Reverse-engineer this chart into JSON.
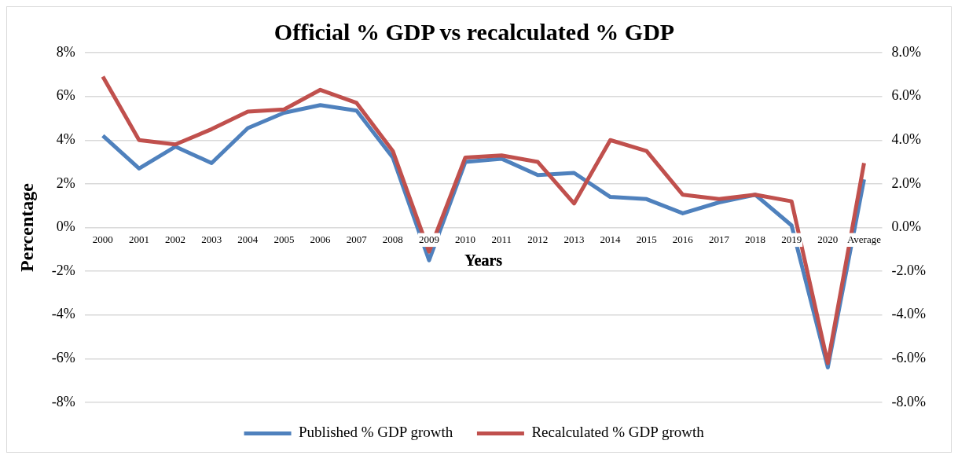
{
  "chart_data": {
    "type": "line",
    "title": "Official % GDP vs recalculated % GDP",
    "xlabel": "Years",
    "ylabel": "Percentage",
    "categories": [
      "2000",
      "2001",
      "2002",
      "2003",
      "2004",
      "2005",
      "2006",
      "2007",
      "2008",
      "2009",
      "2010",
      "2011",
      "2012",
      "2013",
      "2014",
      "2015",
      "2016",
      "2017",
      "2018",
      "2019",
      "2020",
      "Average"
    ],
    "series": [
      {
        "name": "Published % GDP growth",
        "color": "#4f81bd",
        "values": [
          4.2,
          2.7,
          3.7,
          2.95,
          4.55,
          5.25,
          5.6,
          5.35,
          3.2,
          -1.5,
          3.0,
          3.15,
          2.4,
          2.5,
          1.4,
          1.3,
          0.65,
          1.15,
          1.5,
          0.1,
          -6.4,
          2.2
        ]
      },
      {
        "name": "Recalculated % GDP growth",
        "color": "#c0504d",
        "values": [
          6.9,
          4.0,
          3.8,
          4.5,
          5.3,
          5.4,
          6.3,
          5.7,
          3.5,
          -1.1,
          3.2,
          3.3,
          3.0,
          1.1,
          4.0,
          3.5,
          1.5,
          1.3,
          1.5,
          1.2,
          -6.2,
          2.95
        ]
      }
    ],
    "ylim": [
      -8,
      8
    ],
    "yticks": [
      {
        "value": -8,
        "label": "-8%"
      },
      {
        "value": -6,
        "label": "-6%"
      },
      {
        "value": -4,
        "label": "-4%"
      },
      {
        "value": -2,
        "label": "-2%"
      },
      {
        "value": 0,
        "label": "0%"
      },
      {
        "value": 2,
        "label": "2%"
      },
      {
        "value": 4,
        "label": "4%"
      },
      {
        "value": 6,
        "label": "6%"
      },
      {
        "value": 8,
        "label": "8%"
      }
    ],
    "y2lim": [
      -8,
      8
    ],
    "y2ticks": [
      {
        "value": -8,
        "label": "-8.0%"
      },
      {
        "value": -6,
        "label": "-6.0%"
      },
      {
        "value": -4,
        "label": "-4.0%"
      },
      {
        "value": -2,
        "label": "-2.0%"
      },
      {
        "value": 0,
        "label": "0.0%"
      },
      {
        "value": 2,
        "label": "2.0%"
      },
      {
        "value": 4,
        "label": "4.0%"
      },
      {
        "value": 6,
        "label": "6.0%"
      },
      {
        "value": 8,
        "label": "8.0%"
      }
    ],
    "grid": "y",
    "legend": "bottom",
    "marker": "none",
    "line_style": "solid"
  }
}
